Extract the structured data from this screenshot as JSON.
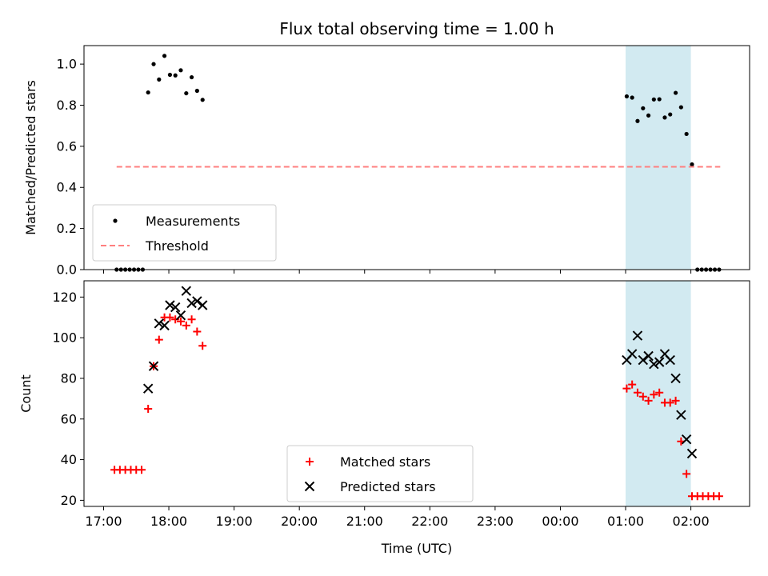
{
  "chart_data": {
    "title": "Flux total observing time = 1.00 h",
    "xlabel": "Time (UTC)",
    "x_ticks": [
      {
        "h": 17,
        "label": "17:00"
      },
      {
        "h": 18,
        "label": "18:00"
      },
      {
        "h": 19,
        "label": "19:00"
      },
      {
        "h": 20,
        "label": "20:00"
      },
      {
        "h": 21,
        "label": "21:00"
      },
      {
        "h": 22,
        "label": "22:00"
      },
      {
        "h": 23,
        "label": "23:00"
      },
      {
        "h": 24,
        "label": "00:00"
      },
      {
        "h": 25,
        "label": "01:00"
      },
      {
        "h": 26,
        "label": "02:00"
      }
    ],
    "xlim": [
      16.7,
      26.9
    ],
    "shaded_span": {
      "from": 25.0,
      "to": 26.0,
      "color": "#add8e6"
    },
    "panels": [
      {
        "type": "scatter",
        "ylabel": "Matched/Predicted stars",
        "ylim": [
          0,
          1.09
        ],
        "y_ticks": [
          {
            "v": 0.0,
            "label": "0.0"
          },
          {
            "v": 0.2,
            "label": "0.2"
          },
          {
            "v": 0.4,
            "label": "0.4"
          },
          {
            "v": 0.6,
            "label": "0.6"
          },
          {
            "v": 0.8,
            "label": "0.8"
          },
          {
            "v": 1.0,
            "label": "1.0"
          }
        ],
        "series": [
          {
            "name": "Measurements",
            "marker": "dot",
            "color": "#000000",
            "points": [
              [
                17.2,
                0.0
              ],
              [
                17.267,
                0.0
              ],
              [
                17.333,
                0.0
              ],
              [
                17.4,
                0.0
              ],
              [
                17.467,
                0.0
              ],
              [
                17.533,
                0.0
              ],
              [
                17.6,
                0.0
              ],
              [
                17.683,
                0.862
              ],
              [
                17.767,
                1.0
              ],
              [
                17.85,
                0.925
              ],
              [
                17.933,
                1.04
              ],
              [
                18.017,
                0.948
              ],
              [
                18.1,
                0.945
              ],
              [
                18.183,
                0.97
              ],
              [
                18.267,
                0.858
              ],
              [
                18.35,
                0.936
              ],
              [
                18.433,
                0.87
              ],
              [
                18.517,
                0.826
              ],
              [
                25.017,
                0.843
              ],
              [
                25.1,
                0.837
              ],
              [
                25.183,
                0.723
              ],
              [
                25.267,
                0.785
              ],
              [
                25.35,
                0.75
              ],
              [
                25.433,
                0.828
              ],
              [
                25.517,
                0.829
              ],
              [
                25.6,
                0.74
              ],
              [
                25.683,
                0.755
              ],
              [
                25.767,
                0.86
              ],
              [
                25.85,
                0.79
              ],
              [
                25.933,
                0.66
              ],
              [
                26.017,
                0.512
              ],
              [
                26.1,
                0.0
              ],
              [
                26.167,
                0.0
              ],
              [
                26.233,
                0.0
              ],
              [
                26.3,
                0.0
              ],
              [
                26.367,
                0.0
              ],
              [
                26.433,
                0.0
              ]
            ]
          },
          {
            "name": "Threshold",
            "type": "line",
            "style": "dashed",
            "color": "#ff7f7f",
            "points": [
              [
                17.2,
                0.5
              ],
              [
                26.45,
                0.5
              ]
            ]
          }
        ],
        "legend": "lower-left"
      },
      {
        "type": "scatter",
        "ylabel": "Count",
        "ylim": [
          17,
          128
        ],
        "y_ticks": [
          {
            "v": 20,
            "label": "20"
          },
          {
            "v": 40,
            "label": "40"
          },
          {
            "v": 60,
            "label": "60"
          },
          {
            "v": 80,
            "label": "80"
          },
          {
            "v": 100,
            "label": "100"
          },
          {
            "v": 120,
            "label": "120"
          }
        ],
        "series": [
          {
            "name": "Matched stars",
            "marker": "plus",
            "color": "#ff0000",
            "points": [
              [
                17.167,
                35
              ],
              [
                17.25,
                35
              ],
              [
                17.333,
                35
              ],
              [
                17.417,
                35
              ],
              [
                17.5,
                35
              ],
              [
                17.583,
                35
              ],
              [
                17.683,
                65
              ],
              [
                17.767,
                86
              ],
              [
                17.85,
                99
              ],
              [
                17.933,
                110
              ],
              [
                18.017,
                110
              ],
              [
                18.1,
                109
              ],
              [
                18.183,
                108
              ],
              [
                18.267,
                106
              ],
              [
                18.35,
                109
              ],
              [
                18.433,
                103
              ],
              [
                18.517,
                96
              ],
              [
                25.017,
                75
              ],
              [
                25.1,
                77
              ],
              [
                25.183,
                73
              ],
              [
                25.267,
                71
              ],
              [
                25.35,
                69
              ],
              [
                25.433,
                72
              ],
              [
                25.517,
                73
              ],
              [
                25.6,
                68
              ],
              [
                25.683,
                68
              ],
              [
                25.767,
                69
              ],
              [
                25.85,
                49
              ],
              [
                25.933,
                33
              ],
              [
                26.017,
                22
              ],
              [
                26.1,
                22
              ],
              [
                26.183,
                22
              ],
              [
                26.267,
                22
              ],
              [
                26.35,
                22
              ],
              [
                26.433,
                22
              ]
            ]
          },
          {
            "name": "Predicted stars",
            "marker": "x",
            "color": "#000000",
            "points": [
              [
                17.683,
                75
              ],
              [
                17.767,
                86
              ],
              [
                17.85,
                107
              ],
              [
                17.933,
                106
              ],
              [
                18.017,
                116
              ],
              [
                18.1,
                115
              ],
              [
                18.183,
                111
              ],
              [
                18.267,
                123
              ],
              [
                18.35,
                117
              ],
              [
                18.433,
                118
              ],
              [
                18.517,
                116
              ],
              [
                25.017,
                89
              ],
              [
                25.1,
                92
              ],
              [
                25.183,
                101
              ],
              [
                25.267,
                89
              ],
              [
                25.35,
                91
              ],
              [
                25.433,
                87
              ],
              [
                25.517,
                88
              ],
              [
                25.6,
                92
              ],
              [
                25.683,
                89
              ],
              [
                25.767,
                80
              ],
              [
                25.85,
                62
              ],
              [
                25.933,
                50
              ],
              [
                26.017,
                43
              ]
            ]
          }
        ],
        "legend": "lower-center"
      }
    ]
  }
}
